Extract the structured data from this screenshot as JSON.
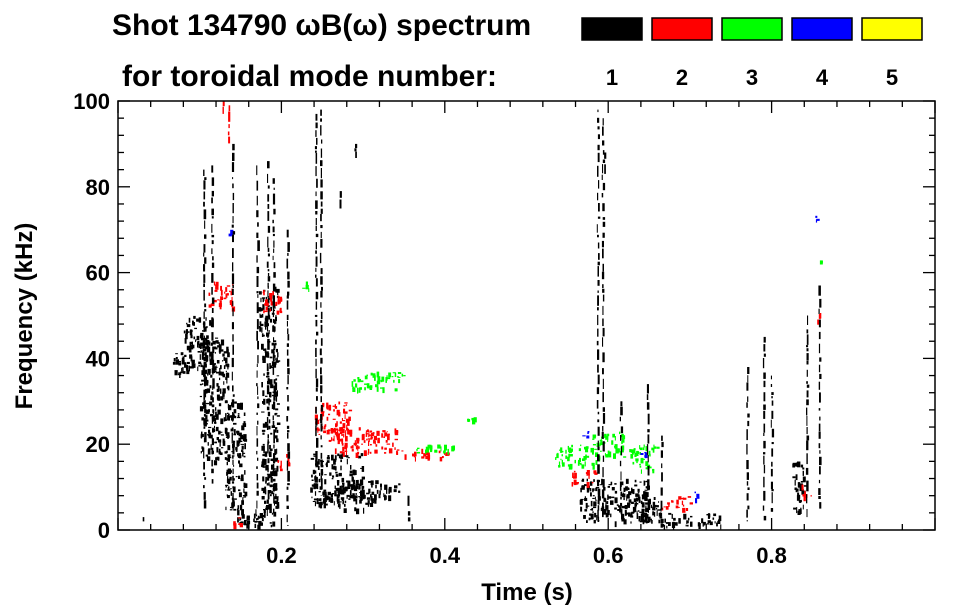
{
  "chart_data": {
    "type": "heatmap",
    "title_line1": "Shot 134790 ωB(ω) spectrum",
    "title_line2": "for toroidal mode number:",
    "xlabel": "Time (s)",
    "ylabel": "Frequency (kHz)",
    "xlim": [
      0.0,
      1.0
    ],
    "ylim": [
      0,
      100
    ],
    "x_ticks": [
      "0.2",
      "0.4",
      "0.6",
      "0.8"
    ],
    "y_ticks": [
      "0",
      "20",
      "40",
      "60",
      "80",
      "100"
    ],
    "grid": false,
    "legend_placement": "top-right",
    "legend": [
      {
        "label": "1",
        "color": "#000000"
      },
      {
        "label": "2",
        "color": "#ff0000"
      },
      {
        "label": "3",
        "color": "#00ff00"
      },
      {
        "label": "4",
        "color": "#0000ff"
      },
      {
        "label": "5",
        "color": "#ffff00"
      }
    ],
    "blobs": [
      {
        "mode": 1,
        "t": [
          0.065,
          0.085
        ],
        "f": [
          36,
          42
        ]
      },
      {
        "mode": 1,
        "t": [
          0.08,
          0.115
        ],
        "f": [
          37,
          50
        ]
      },
      {
        "mode": 1,
        "t": [
          0.1,
          0.135
        ],
        "f": [
          16,
          45
        ]
      },
      {
        "mode": 1,
        "t": [
          0.13,
          0.155
        ],
        "f": [
          4,
          30
        ]
      },
      {
        "mode": 1,
        "t": [
          0.145,
          0.19
        ],
        "f": [
          1,
          5
        ]
      },
      {
        "mode": 1,
        "t": [
          0.17,
          0.195
        ],
        "f": [
          46,
          57
        ]
      },
      {
        "mode": 1,
        "t": [
          0.175,
          0.195
        ],
        "f": [
          4,
          46
        ]
      },
      {
        "mode": 1,
        "t": [
          0.235,
          0.3
        ],
        "f": [
          6,
          18
        ]
      },
      {
        "mode": 1,
        "t": [
          0.265,
          0.315
        ],
        "f": [
          5,
          12
        ]
      },
      {
        "mode": 1,
        "t": [
          0.315,
          0.345
        ],
        "f": [
          8,
          11
        ]
      },
      {
        "mode": 1,
        "t": [
          0.565,
          0.65
        ],
        "f": [
          2,
          12
        ]
      },
      {
        "mode": 1,
        "t": [
          0.63,
          0.665
        ],
        "f": [
          2,
          9
        ]
      },
      {
        "mode": 1,
        "t": [
          0.66,
          0.74
        ],
        "f": [
          1,
          4
        ]
      },
      {
        "mode": 1,
        "t": [
          0.825,
          0.84
        ],
        "f": [
          4,
          16
        ]
      },
      {
        "mode": 2,
        "t": [
          0.24,
          0.285
        ],
        "f": [
          21,
          30
        ]
      },
      {
        "mode": 2,
        "t": [
          0.265,
          0.34
        ],
        "f": [
          18,
          24
        ]
      },
      {
        "mode": 2,
        "t": [
          0.34,
          0.405
        ],
        "f": [
          17,
          19
        ]
      },
      {
        "mode": 2,
        "t": [
          0.195,
          0.21
        ],
        "f": [
          14,
          18
        ]
      },
      {
        "mode": 2,
        "t": [
          0.175,
          0.2
        ],
        "f": [
          51,
          56
        ]
      },
      {
        "mode": 2,
        "t": [
          0.11,
          0.14
        ],
        "f": [
          52,
          58
        ]
      },
      {
        "mode": 2,
        "t": [
          0.555,
          0.585
        ],
        "f": [
          11,
          14
        ]
      },
      {
        "mode": 2,
        "t": [
          0.665,
          0.7
        ],
        "f": [
          5,
          8
        ]
      },
      {
        "mode": 2,
        "t": [
          0.835,
          0.85
        ],
        "f": [
          8,
          11
        ]
      },
      {
        "mode": 2,
        "t": [
          0.855,
          0.86
        ],
        "f": [
          49,
          51
        ]
      },
      {
        "mode": 2,
        "t": [
          0.135,
          0.15
        ],
        "f": [
          1,
          3
        ]
      },
      {
        "mode": 3,
        "t": [
          0.285,
          0.35
        ],
        "f": [
          33,
          37
        ]
      },
      {
        "mode": 3,
        "t": [
          0.535,
          0.585
        ],
        "f": [
          15,
          20
        ]
      },
      {
        "mode": 3,
        "t": [
          0.58,
          0.62
        ],
        "f": [
          17,
          23
        ]
      },
      {
        "mode": 3,
        "t": [
          0.625,
          0.66
        ],
        "f": [
          14,
          20
        ]
      },
      {
        "mode": 3,
        "t": [
          0.855,
          0.86
        ],
        "f": [
          62,
          64
        ]
      },
      {
        "mode": 3,
        "t": [
          0.36,
          0.41
        ],
        "f": [
          18,
          20
        ]
      },
      {
        "mode": 3,
        "t": [
          0.225,
          0.235
        ],
        "f": [
          56,
          58
        ]
      },
      {
        "mode": 3,
        "t": [
          0.425,
          0.44
        ],
        "f": [
          25,
          27
        ]
      },
      {
        "mode": 4,
        "t": [
          0.565,
          0.575
        ],
        "f": [
          22,
          24
        ]
      },
      {
        "mode": 4,
        "t": [
          0.635,
          0.645
        ],
        "f": [
          17,
          19
        ]
      },
      {
        "mode": 4,
        "t": [
          0.7,
          0.71
        ],
        "f": [
          7,
          9
        ]
      },
      {
        "mode": 4,
        "t": [
          0.853,
          0.858
        ],
        "f": [
          71,
          74
        ]
      },
      {
        "mode": 4,
        "t": [
          0.135,
          0.14
        ],
        "f": [
          69,
          71
        ]
      }
    ],
    "streaks": [
      {
        "mode": 1,
        "t": 0.242,
        "f": [
          15,
          97
        ]
      },
      {
        "mode": 1,
        "t": 0.248,
        "f": [
          8,
          98
        ]
      },
      {
        "mode": 1,
        "t": 0.587,
        "f": [
          2,
          98
        ]
      },
      {
        "mode": 1,
        "t": 0.593,
        "f": [
          3,
          96
        ]
      },
      {
        "mode": 1,
        "t": 0.105,
        "f": [
          5,
          84
        ]
      },
      {
        "mode": 1,
        "t": 0.115,
        "f": [
          10,
          85
        ]
      },
      {
        "mode": 1,
        "t": 0.14,
        "f": [
          5,
          90
        ]
      },
      {
        "mode": 1,
        "t": 0.17,
        "f": [
          5,
          85
        ]
      },
      {
        "mode": 1,
        "t": 0.183,
        "f": [
          3,
          86
        ]
      },
      {
        "mode": 1,
        "t": 0.19,
        "f": [
          3,
          82
        ]
      },
      {
        "mode": 1,
        "t": 0.207,
        "f": [
          1,
          70
        ]
      },
      {
        "mode": 1,
        "t": 0.272,
        "f": [
          74,
          79
        ]
      },
      {
        "mode": 1,
        "t": 0.29,
        "f": [
          86,
          90
        ]
      },
      {
        "mode": 1,
        "t": 0.355,
        "f": [
          2,
          8
        ]
      },
      {
        "mode": 1,
        "t": 0.615,
        "f": [
          5,
          30
        ]
      },
      {
        "mode": 1,
        "t": 0.648,
        "f": [
          5,
          34
        ]
      },
      {
        "mode": 1,
        "t": 0.665,
        "f": [
          4,
          22
        ]
      },
      {
        "mode": 1,
        "t": 0.77,
        "f": [
          2,
          38
        ]
      },
      {
        "mode": 1,
        "t": 0.79,
        "f": [
          2,
          45
        ]
      },
      {
        "mode": 1,
        "t": 0.8,
        "f": [
          4,
          36
        ]
      },
      {
        "mode": 1,
        "t": 0.843,
        "f": [
          3,
          50
        ]
      },
      {
        "mode": 1,
        "t": 0.858,
        "f": [
          5,
          57
        ]
      },
      {
        "mode": 1,
        "t": 0.03,
        "f": [
          2,
          3
        ]
      },
      {
        "mode": 1,
        "t": 0.595,
        "f": [
          83,
          88
        ]
      },
      {
        "mode": 2,
        "t": 0.135,
        "f": [
          90,
          99
        ]
      },
      {
        "mode": 2,
        "t": 0.128,
        "f": [
          97,
          100
        ]
      }
    ]
  }
}
